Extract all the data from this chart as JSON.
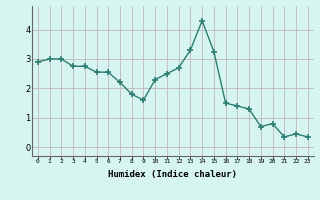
{
  "x": [
    0,
    1,
    2,
    3,
    4,
    5,
    6,
    7,
    8,
    9,
    10,
    11,
    12,
    13,
    14,
    15,
    16,
    17,
    18,
    19,
    20,
    21,
    22,
    23
  ],
  "y": [
    2.9,
    3.0,
    3.0,
    2.75,
    2.75,
    2.55,
    2.55,
    2.2,
    1.8,
    1.6,
    2.3,
    2.5,
    2.7,
    3.3,
    4.3,
    3.25,
    1.5,
    1.4,
    1.3,
    0.7,
    0.8,
    0.35,
    0.45,
    0.35
  ],
  "line_color": "#2e7d72",
  "marker": "+",
  "marker_size": 4,
  "bg_color": "#d6f5f0",
  "grid_color": "#c0b8b8",
  "xlabel": "Humidex (Indice chaleur)",
  "xlim": [
    -0.5,
    23.5
  ],
  "ylim": [
    -0.3,
    4.8
  ],
  "yticks": [
    0,
    1,
    2,
    3,
    4
  ],
  "xtick_labels": [
    "0",
    "1",
    "2",
    "3",
    "4",
    "5",
    "6",
    "7",
    "8",
    "9",
    "10",
    "11",
    "12",
    "13",
    "14",
    "15",
    "16",
    "17",
    "18",
    "19",
    "20",
    "21",
    "22",
    "23"
  ]
}
